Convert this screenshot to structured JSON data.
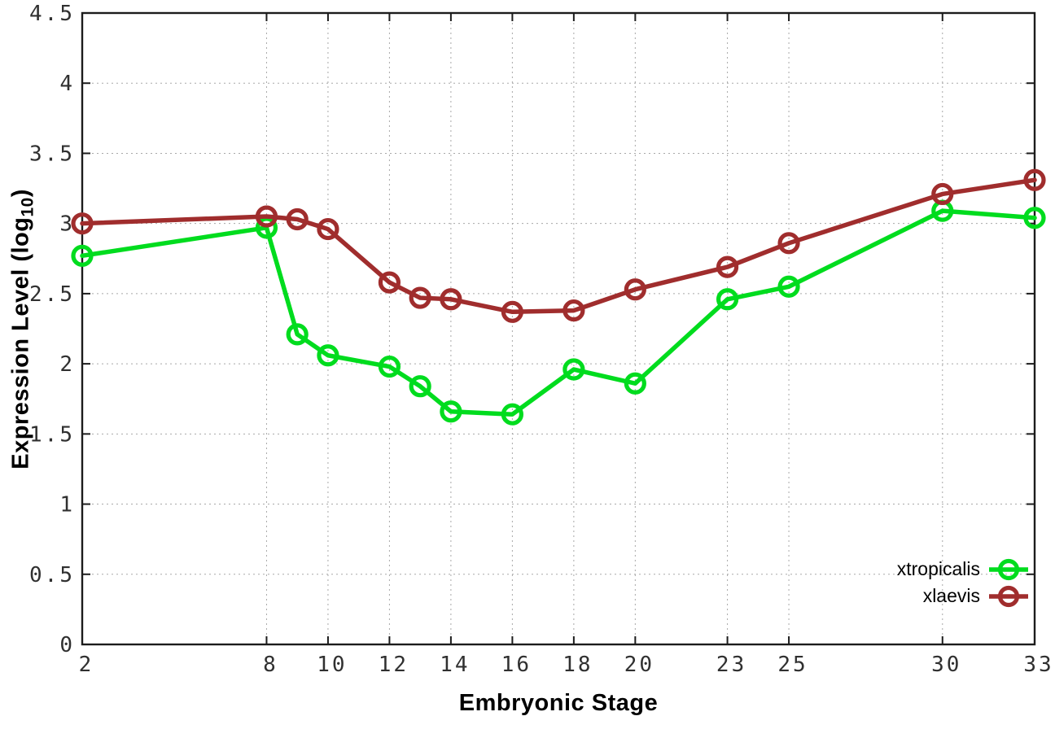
{
  "figure": {
    "background": "#ffffff",
    "border_color": "#1c1c1c",
    "grid_color": "#a8a8a8",
    "tick_label_color": "#303030"
  },
  "axes": {
    "x_label": "Embryonic Stage",
    "y_label_prefix": "Expression Level (log",
    "y_label_sub": "10",
    "y_label_suffix": ")"
  },
  "legend": {
    "position": "bottom-right",
    "items": [
      {
        "label": "xtropicalis",
        "color": "#00dc1e"
      },
      {
        "label": "xlaevis",
        "color": "#a02d2d"
      }
    ]
  },
  "chart_data": {
    "type": "line",
    "title": "",
    "xlabel": "Embryonic Stage",
    "ylabel": "Expression Level (log10)",
    "x": [
      2,
      8,
      9,
      10,
      12,
      13,
      14,
      16,
      18,
      20,
      23,
      25,
      30,
      33
    ],
    "series": [
      {
        "name": "xtropicalis",
        "color": "#00dc1e",
        "marker": "open-circle",
        "values": [
          2.77,
          2.97,
          2.21,
          2.06,
          1.98,
          1.84,
          1.66,
          1.64,
          1.96,
          1.86,
          2.46,
          2.55,
          3.09,
          3.04
        ]
      },
      {
        "name": "xlaevis",
        "color": "#a02d2d",
        "marker": "open-circle",
        "values": [
          3.0,
          3.05,
          3.03,
          2.96,
          2.58,
          2.47,
          2.46,
          2.37,
          2.38,
          2.53,
          2.69,
          2.86,
          3.21,
          3.31
        ]
      }
    ],
    "xlim": [
      2,
      33
    ],
    "ylim": [
      0,
      4.5
    ],
    "x_ticks": [
      2,
      8,
      10,
      12,
      14,
      16,
      18,
      20,
      23,
      25,
      30,
      33
    ],
    "x_tick_labels": [
      "2",
      "8",
      "10",
      "12",
      "14",
      "16",
      "18",
      "20",
      "23",
      "25",
      "30",
      "33"
    ],
    "y_ticks": [
      0,
      0.5,
      1,
      1.5,
      2,
      2.5,
      3,
      3.5,
      4,
      4.5
    ],
    "y_tick_labels": [
      "0",
      "0.5",
      "1",
      "1.5",
      "2",
      "2.5",
      "3",
      "3.5",
      "4",
      "4.5"
    ],
    "grid": true,
    "grid_style": "dotted",
    "legend_position": "bottom-right"
  }
}
